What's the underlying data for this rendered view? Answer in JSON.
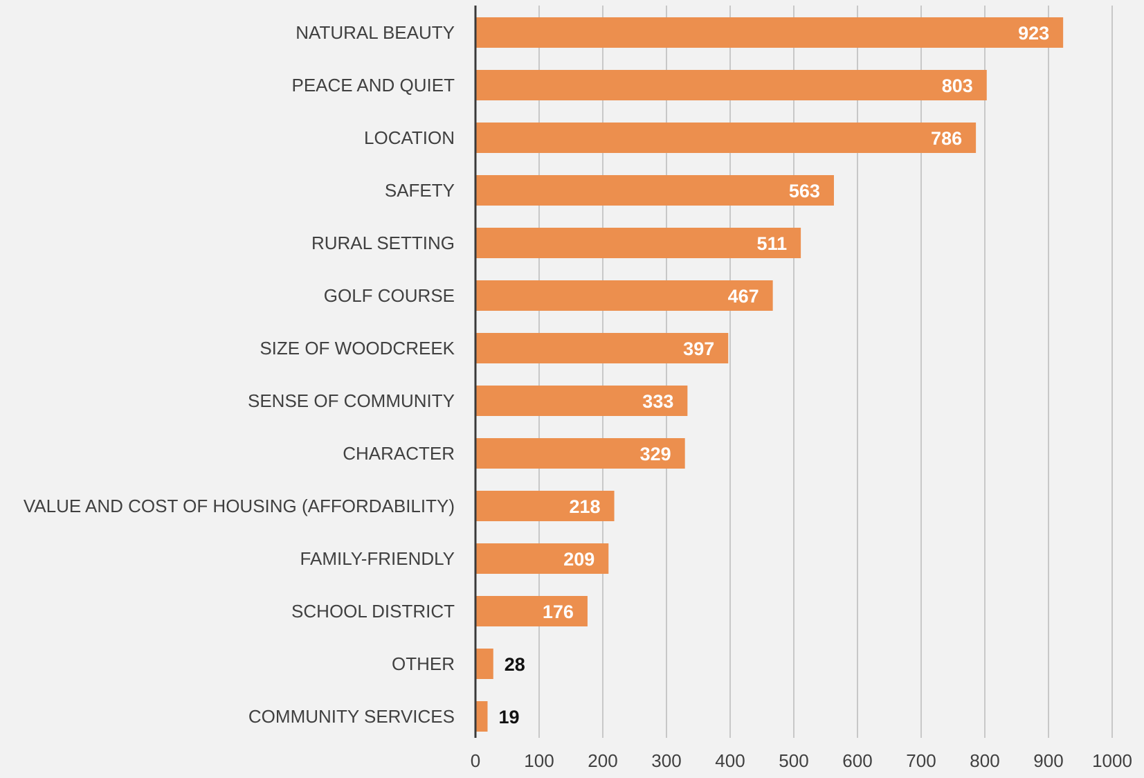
{
  "chart_data": {
    "type": "bar",
    "orientation": "horizontal",
    "title": "",
    "xlabel": "",
    "ylabel": "",
    "categories": [
      "NATURAL BEAUTY",
      "PEACE AND QUIET",
      "LOCATION",
      "SAFETY",
      "RURAL SETTING",
      "GOLF COURSE",
      "SIZE OF WOODCREEK",
      "SENSE OF COMMUNITY",
      "CHARACTER",
      "VALUE AND COST OF HOUSING (AFFORDABILITY)",
      "FAMILY-FRIENDLY",
      "SCHOOL DISTRICT",
      "OTHER",
      "COMMUNITY SERVICES"
    ],
    "values": [
      923,
      803,
      786,
      563,
      511,
      467,
      397,
      333,
      329,
      218,
      209,
      176,
      28,
      19
    ],
    "xlim": [
      0,
      1000
    ],
    "xticks": [
      0,
      100,
      200,
      300,
      400,
      500,
      600,
      700,
      800,
      900,
      1000
    ],
    "grid": "vertical",
    "legend": "none",
    "bar_color": "#ec8f4e",
    "background_color": "#f2f2f2"
  }
}
